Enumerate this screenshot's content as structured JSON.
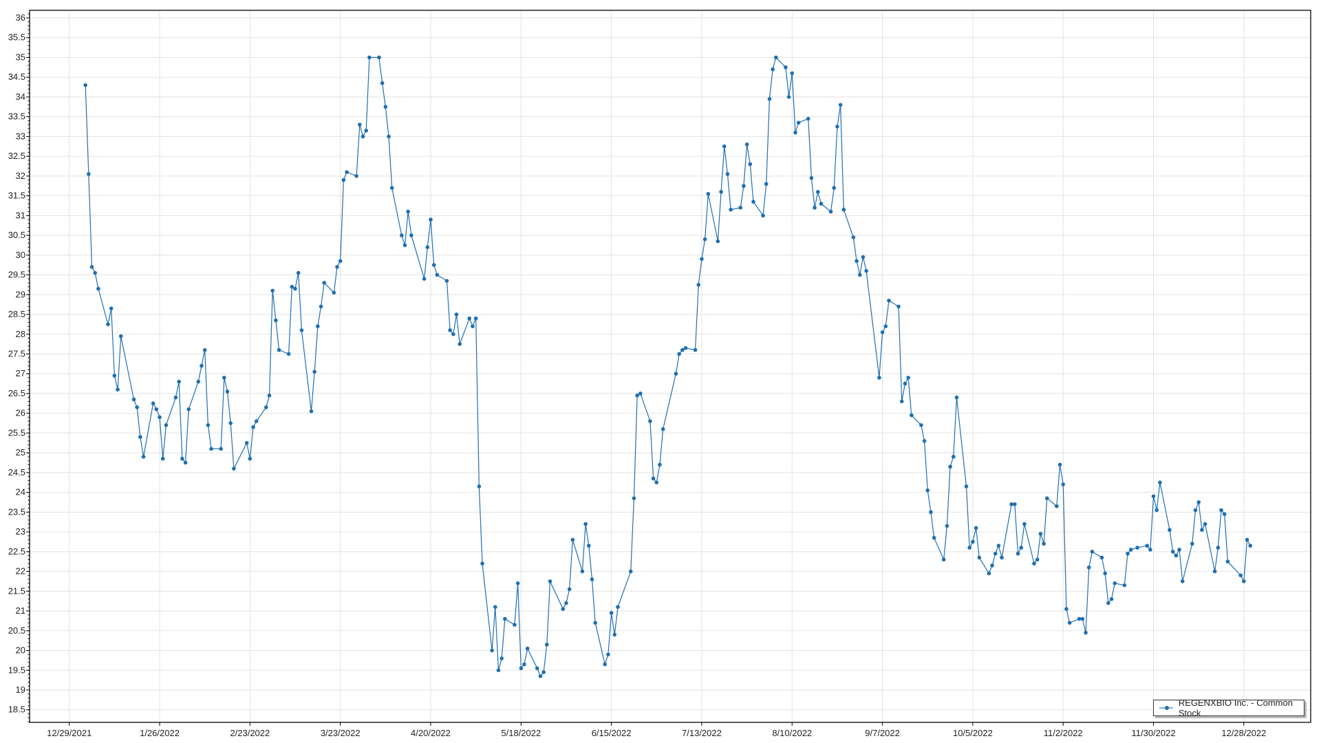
{
  "chart_data": {
    "type": "line",
    "title": "",
    "xlabel": "",
    "ylabel": "",
    "ylim": [
      18.2,
      36.2
    ],
    "y_major_step": 0.5,
    "x_ticks": [
      "12/29/2021",
      "1/26/2022",
      "2/23/2022",
      "3/23/2022",
      "4/20/2022",
      "5/18/2022",
      "6/15/2022",
      "7/13/2022",
      "8/10/2022",
      "9/7/2022",
      "10/5/2022",
      "11/2/2022",
      "11/30/2022",
      "12/28/2022"
    ],
    "grid": true,
    "legend_position": "bottom-right",
    "series": [
      {
        "name": "REGENXBIO Inc. - Common Stock",
        "color": "#1f6fb0",
        "markers": true,
        "points": [
          [
            "2022-01-03",
            34.3
          ],
          [
            "2022-01-04",
            32.05
          ],
          [
            "2022-01-05",
            29.7
          ],
          [
            "2022-01-06",
            29.55
          ],
          [
            "2022-01-07",
            29.15
          ],
          [
            "2022-01-10",
            28.25
          ],
          [
            "2022-01-11",
            28.65
          ],
          [
            "2022-01-12",
            26.95
          ],
          [
            "2022-01-13",
            26.6
          ],
          [
            "2022-01-14",
            27.95
          ],
          [
            "2022-01-18",
            26.35
          ],
          [
            "2022-01-19",
            26.15
          ],
          [
            "2022-01-20",
            25.4
          ],
          [
            "2022-01-21",
            24.9
          ],
          [
            "2022-01-24",
            26.25
          ],
          [
            "2022-01-25",
            26.1
          ],
          [
            "2022-01-26",
            25.9
          ],
          [
            "2022-01-27",
            24.85
          ],
          [
            "2022-01-28",
            25.7
          ],
          [
            "2022-01-31",
            26.4
          ],
          [
            "2022-02-01",
            26.8
          ],
          [
            "2022-02-02",
            24.85
          ],
          [
            "2022-02-03",
            24.75
          ],
          [
            "2022-02-04",
            26.1
          ],
          [
            "2022-02-07",
            26.8
          ],
          [
            "2022-02-08",
            27.2
          ],
          [
            "2022-02-09",
            27.6
          ],
          [
            "2022-02-10",
            25.7
          ],
          [
            "2022-02-11",
            25.1
          ],
          [
            "2022-02-14",
            25.1
          ],
          [
            "2022-02-15",
            26.9
          ],
          [
            "2022-02-16",
            26.55
          ],
          [
            "2022-02-17",
            25.75
          ],
          [
            "2022-02-18",
            24.6
          ],
          [
            "2022-02-22",
            25.25
          ],
          [
            "2022-02-23",
            24.85
          ],
          [
            "2022-02-24",
            25.65
          ],
          [
            "2022-02-25",
            25.8
          ],
          [
            "2022-02-28",
            26.15
          ],
          [
            "2022-03-01",
            26.45
          ],
          [
            "2022-03-02",
            29.1
          ],
          [
            "2022-03-03",
            28.35
          ],
          [
            "2022-03-04",
            27.6
          ],
          [
            "2022-03-07",
            27.5
          ],
          [
            "2022-03-08",
            29.2
          ],
          [
            "2022-03-09",
            29.15
          ],
          [
            "2022-03-10",
            29.55
          ],
          [
            "2022-03-11",
            28.1
          ],
          [
            "2022-03-14",
            26.05
          ],
          [
            "2022-03-15",
            27.05
          ],
          [
            "2022-03-16",
            28.2
          ],
          [
            "2022-03-17",
            28.7
          ],
          [
            "2022-03-18",
            29.3
          ],
          [
            "2022-03-21",
            29.05
          ],
          [
            "2022-03-22",
            29.7
          ],
          [
            "2022-03-23",
            29.85
          ],
          [
            "2022-03-24",
            31.9
          ],
          [
            "2022-03-25",
            32.1
          ],
          [
            "2022-03-28",
            32.0
          ],
          [
            "2022-03-29",
            33.3
          ],
          [
            "2022-03-30",
            33.0
          ],
          [
            "2022-03-31",
            33.15
          ],
          [
            "2022-04-01",
            35.0
          ],
          [
            "2022-04-04",
            35.0
          ],
          [
            "2022-04-05",
            34.35
          ],
          [
            "2022-04-06",
            33.75
          ],
          [
            "2022-04-07",
            33.0
          ],
          [
            "2022-04-08",
            31.7
          ],
          [
            "2022-04-11",
            30.5
          ],
          [
            "2022-04-12",
            30.25
          ],
          [
            "2022-04-13",
            31.1
          ],
          [
            "2022-04-14",
            30.5
          ],
          [
            "2022-04-18",
            29.4
          ],
          [
            "2022-04-19",
            30.2
          ],
          [
            "2022-04-20",
            30.9
          ],
          [
            "2022-04-21",
            29.75
          ],
          [
            "2022-04-22",
            29.5
          ],
          [
            "2022-04-25",
            29.35
          ],
          [
            "2022-04-26",
            28.1
          ],
          [
            "2022-04-27",
            28.0
          ],
          [
            "2022-04-28",
            28.5
          ],
          [
            "2022-04-29",
            27.75
          ],
          [
            "2022-05-02",
            28.4
          ],
          [
            "2022-05-03",
            28.2
          ],
          [
            "2022-05-04",
            28.4
          ],
          [
            "2022-05-05",
            24.15
          ],
          [
            "2022-05-06",
            22.2
          ],
          [
            "2022-05-09",
            20.0
          ],
          [
            "2022-05-10",
            21.1
          ],
          [
            "2022-05-11",
            19.5
          ],
          [
            "2022-05-12",
            19.8
          ],
          [
            "2022-05-13",
            20.8
          ],
          [
            "2022-05-16",
            20.65
          ],
          [
            "2022-05-17",
            21.7
          ],
          [
            "2022-05-18",
            19.55
          ],
          [
            "2022-05-19",
            19.65
          ],
          [
            "2022-05-20",
            20.05
          ],
          [
            "2022-05-23",
            19.55
          ],
          [
            "2022-05-24",
            19.35
          ],
          [
            "2022-05-25",
            19.45
          ],
          [
            "2022-05-26",
            20.15
          ],
          [
            "2022-05-27",
            21.75
          ],
          [
            "2022-05-31",
            21.05
          ],
          [
            "2022-06-01",
            21.2
          ],
          [
            "2022-06-02",
            21.55
          ],
          [
            "2022-06-03",
            22.8
          ],
          [
            "2022-06-06",
            22.0
          ],
          [
            "2022-06-07",
            23.2
          ],
          [
            "2022-06-08",
            22.65
          ],
          [
            "2022-06-09",
            21.8
          ],
          [
            "2022-06-10",
            20.7
          ],
          [
            "2022-06-13",
            19.65
          ],
          [
            "2022-06-14",
            19.9
          ],
          [
            "2022-06-15",
            20.95
          ],
          [
            "2022-06-16",
            20.4
          ],
          [
            "2022-06-17",
            21.1
          ],
          [
            "2022-06-21",
            22.0
          ],
          [
            "2022-06-22",
            23.85
          ],
          [
            "2022-06-23",
            26.45
          ],
          [
            "2022-06-24",
            26.5
          ],
          [
            "2022-06-27",
            25.8
          ],
          [
            "2022-06-28",
            24.35
          ],
          [
            "2022-06-29",
            24.25
          ],
          [
            "2022-06-30",
            24.7
          ],
          [
            "2022-07-01",
            25.6
          ],
          [
            "2022-07-05",
            27.0
          ],
          [
            "2022-07-06",
            27.5
          ],
          [
            "2022-07-07",
            27.6
          ],
          [
            "2022-07-08",
            27.65
          ],
          [
            "2022-07-11",
            27.6
          ],
          [
            "2022-07-12",
            29.25
          ],
          [
            "2022-07-13",
            29.9
          ],
          [
            "2022-07-14",
            30.4
          ],
          [
            "2022-07-15",
            31.55
          ],
          [
            "2022-07-18",
            30.35
          ],
          [
            "2022-07-19",
            31.6
          ],
          [
            "2022-07-20",
            32.75
          ],
          [
            "2022-07-21",
            32.05
          ],
          [
            "2022-07-22",
            31.15
          ],
          [
            "2022-07-25",
            31.2
          ],
          [
            "2022-07-26",
            31.75
          ],
          [
            "2022-07-27",
            32.8
          ],
          [
            "2022-07-28",
            32.3
          ],
          [
            "2022-07-29",
            31.35
          ],
          [
            "2022-08-01",
            31.0
          ],
          [
            "2022-08-02",
            31.8
          ],
          [
            "2022-08-03",
            33.95
          ],
          [
            "2022-08-04",
            34.7
          ],
          [
            "2022-08-05",
            35.0
          ],
          [
            "2022-08-08",
            34.75
          ],
          [
            "2022-08-09",
            34.0
          ],
          [
            "2022-08-10",
            34.6
          ],
          [
            "2022-08-11",
            33.1
          ],
          [
            "2022-08-12",
            33.35
          ],
          [
            "2022-08-15",
            33.45
          ],
          [
            "2022-08-16",
            31.95
          ],
          [
            "2022-08-17",
            31.2
          ],
          [
            "2022-08-18",
            31.6
          ],
          [
            "2022-08-19",
            31.3
          ],
          [
            "2022-08-22",
            31.1
          ],
          [
            "2022-08-23",
            31.7
          ],
          [
            "2022-08-24",
            33.25
          ],
          [
            "2022-08-25",
            33.8
          ],
          [
            "2022-08-26",
            31.15
          ],
          [
            "2022-08-29",
            30.45
          ],
          [
            "2022-08-30",
            29.85
          ],
          [
            "2022-08-31",
            29.5
          ],
          [
            "2022-09-01",
            29.95
          ],
          [
            "2022-09-02",
            29.6
          ],
          [
            "2022-09-06",
            26.9
          ],
          [
            "2022-09-07",
            28.05
          ],
          [
            "2022-09-08",
            28.2
          ],
          [
            "2022-09-09",
            28.85
          ],
          [
            "2022-09-12",
            28.7
          ],
          [
            "2022-09-13",
            26.3
          ],
          [
            "2022-09-14",
            26.75
          ],
          [
            "2022-09-15",
            26.9
          ],
          [
            "2022-09-16",
            25.95
          ],
          [
            "2022-09-19",
            25.7
          ],
          [
            "2022-09-20",
            25.3
          ],
          [
            "2022-09-21",
            24.05
          ],
          [
            "2022-09-22",
            23.5
          ],
          [
            "2022-09-23",
            22.85
          ],
          [
            "2022-09-26",
            22.3
          ],
          [
            "2022-09-27",
            23.15
          ],
          [
            "2022-09-28",
            24.65
          ],
          [
            "2022-09-29",
            24.9
          ],
          [
            "2022-09-30",
            26.4
          ],
          [
            "2022-10-03",
            24.15
          ],
          [
            "2022-10-04",
            22.6
          ],
          [
            "2022-10-05",
            22.75
          ],
          [
            "2022-10-06",
            23.1
          ],
          [
            "2022-10-07",
            22.35
          ],
          [
            "2022-10-10",
            21.95
          ],
          [
            "2022-10-11",
            22.15
          ],
          [
            "2022-10-12",
            22.45
          ],
          [
            "2022-10-13",
            22.65
          ],
          [
            "2022-10-14",
            22.35
          ],
          [
            "2022-10-17",
            23.7
          ],
          [
            "2022-10-18",
            23.7
          ],
          [
            "2022-10-19",
            22.45
          ],
          [
            "2022-10-20",
            22.6
          ],
          [
            "2022-10-21",
            23.2
          ],
          [
            "2022-10-24",
            22.2
          ],
          [
            "2022-10-25",
            22.3
          ],
          [
            "2022-10-26",
            22.95
          ],
          [
            "2022-10-27",
            22.7
          ],
          [
            "2022-10-28",
            23.85
          ],
          [
            "2022-10-31",
            23.65
          ],
          [
            "2022-11-01",
            24.7
          ],
          [
            "2022-11-02",
            24.2
          ],
          [
            "2022-11-03",
            21.05
          ],
          [
            "2022-11-04",
            20.7
          ],
          [
            "2022-11-07",
            20.8
          ],
          [
            "2022-11-08",
            20.8
          ],
          [
            "2022-11-09",
            20.45
          ],
          [
            "2022-11-10",
            22.1
          ],
          [
            "2022-11-11",
            22.5
          ],
          [
            "2022-11-14",
            22.35
          ],
          [
            "2022-11-15",
            21.95
          ],
          [
            "2022-11-16",
            21.2
          ],
          [
            "2022-11-17",
            21.3
          ],
          [
            "2022-11-18",
            21.7
          ],
          [
            "2022-11-21",
            21.65
          ],
          [
            "2022-11-22",
            22.45
          ],
          [
            "2022-11-23",
            22.55
          ],
          [
            "2022-11-25",
            22.6
          ],
          [
            "2022-11-28",
            22.65
          ],
          [
            "2022-11-29",
            22.55
          ],
          [
            "2022-11-30",
            23.9
          ],
          [
            "2022-12-01",
            23.55
          ],
          [
            "2022-12-02",
            24.25
          ],
          [
            "2022-12-05",
            23.05
          ],
          [
            "2022-12-06",
            22.5
          ],
          [
            "2022-12-07",
            22.4
          ],
          [
            "2022-12-08",
            22.55
          ],
          [
            "2022-12-09",
            21.75
          ],
          [
            "2022-12-12",
            22.7
          ],
          [
            "2022-12-13",
            23.55
          ],
          [
            "2022-12-14",
            23.75
          ],
          [
            "2022-12-15",
            23.05
          ],
          [
            "2022-12-16",
            23.2
          ],
          [
            "2022-12-19",
            22.0
          ],
          [
            "2022-12-20",
            22.6
          ],
          [
            "2022-12-21",
            23.55
          ],
          [
            "2022-12-22",
            23.45
          ],
          [
            "2022-12-23",
            22.25
          ],
          [
            "2022-12-27",
            21.9
          ],
          [
            "2022-12-28",
            21.75
          ],
          [
            "2022-12-29",
            22.8
          ],
          [
            "2022-12-30",
            22.65
          ]
        ]
      }
    ]
  }
}
